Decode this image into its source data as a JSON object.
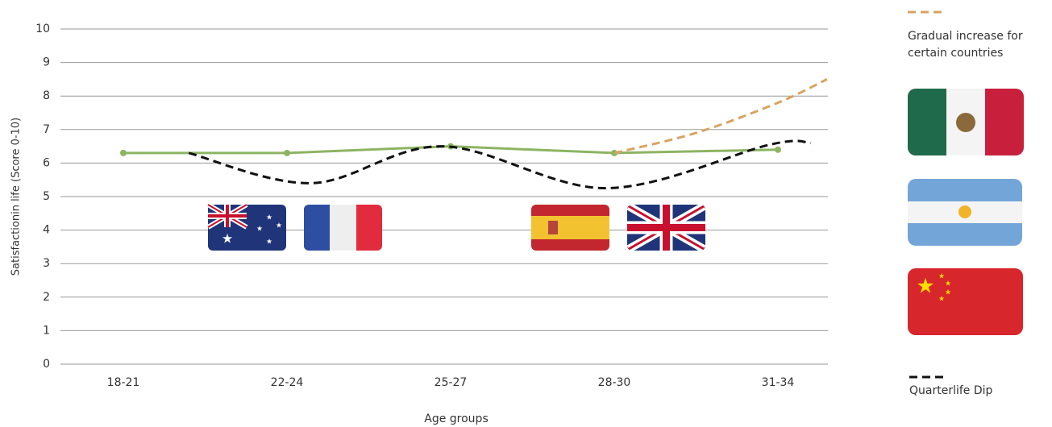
{
  "chart_data": {
    "type": "line",
    "y_label": "Satisfactionin life (Score 0-10)",
    "x_label": "Age groups",
    "categories": [
      "18-21",
      "22-24",
      "25-27",
      "28-30",
      "31-34"
    ],
    "ylim": [
      0,
      10
    ],
    "yticks": [
      0,
      1,
      2,
      3,
      4,
      5,
      6,
      7,
      8,
      9,
      10
    ],
    "grid": true,
    "series": [
      {
        "color": "#8db462",
        "values": [
          6.3,
          6.3,
          6.5,
          6.3,
          6.4
        ]
      },
      {
        "name": "Quarterlife Dip",
        "color": "#111111",
        "dashed": true,
        "x": [
          0.4,
          1.15,
          1.95,
          2.95,
          3.95,
          4.2
        ],
        "values": [
          6.3,
          5.4,
          6.5,
          5.25,
          6.55,
          6.6
        ]
      },
      {
        "name": "Gradual increase for certain countries",
        "color": "#d9a35f",
        "dashed": true,
        "x": [
          3,
          3.5,
          4,
          4.3
        ],
        "values": [
          6.3,
          6.9,
          7.8,
          8.5
        ]
      }
    ]
  }
}
